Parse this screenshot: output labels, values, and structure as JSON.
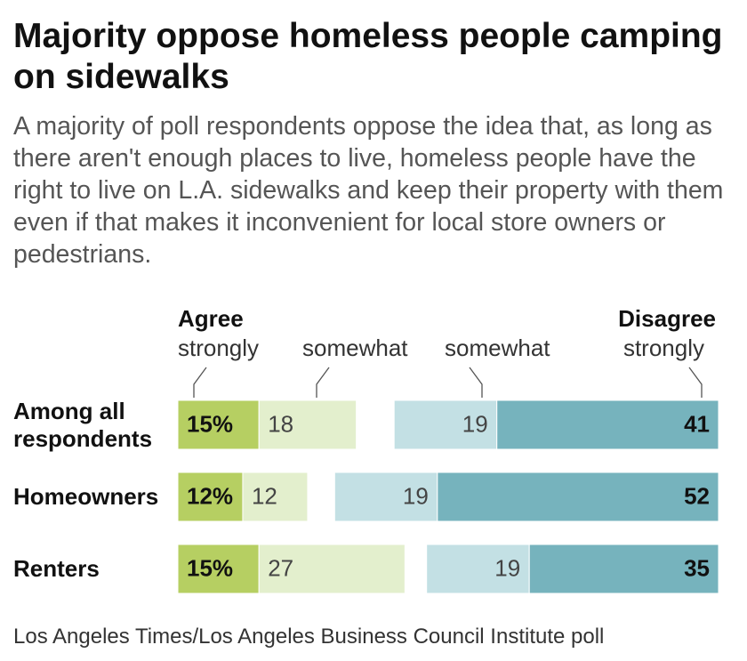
{
  "chart_data": {
    "type": "diverging_bar",
    "title": "Majority oppose homeless people camping on sidewalks",
    "subtitle": "A majority of poll respondents oppose the idea that, as long as there aren't enough places to live, homeless people have the right to live on L.A. sidewalks and keep their property with them even if that makes it inconvenient for local store owners or pedestrians.",
    "source": "Los Angeles Times/Los Angeles Business Council Institute poll",
    "group_labels": [
      "Agree",
      "Disagree"
    ],
    "categories": [
      "Among all respondents",
      "Homeowners",
      "Renters"
    ],
    "series": [
      {
        "name": "strongly",
        "side": "agree",
        "color": "#b6cf62",
        "values": [
          15,
          12,
          15
        ],
        "value_labels": [
          "15%",
          "12%",
          "15%"
        ]
      },
      {
        "name": "somewhat",
        "side": "agree",
        "color": "#e3efcd",
        "values": [
          18,
          12,
          27
        ]
      },
      {
        "name": "somewhat",
        "side": "disagree",
        "color": "#c3e0e4",
        "values": [
          19,
          19,
          19
        ]
      },
      {
        "name": "strongly",
        "side": "disagree",
        "color": "#76b3bd",
        "values": [
          41,
          52,
          35
        ]
      }
    ]
  }
}
